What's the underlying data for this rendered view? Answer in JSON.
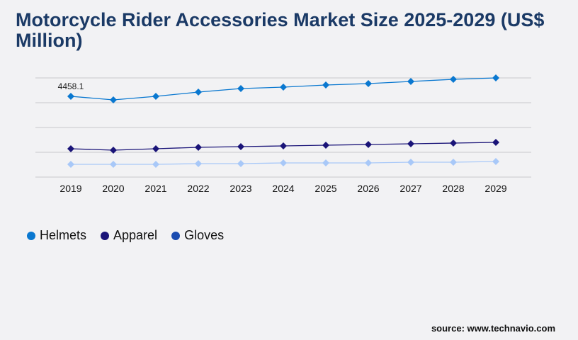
{
  "title": "Motorcycle Rider Accessories Market Size 2025-2029 (US$ Million)",
  "source": "source: www.technavio.com",
  "chart_data": {
    "type": "line",
    "title": "Motorcycle Rider Accessories Market Size 2025-2029 (US$ Million)",
    "categories": [
      "2019",
      "2020",
      "2021",
      "2022",
      "2023",
      "2024",
      "2025",
      "2026",
      "2027",
      "2028",
      "2029"
    ],
    "ylim": [
      0,
      5475
    ],
    "grid": true,
    "legend": "bottom-left",
    "series": [
      {
        "name": "Helmets",
        "color": "#0a78d0",
        "values": [
          4458.1,
          4263,
          4458,
          4693,
          4889,
          4967,
          5084,
          5162,
          5280,
          5397,
          5475
        ]
      },
      {
        "name": "Apparel",
        "color": "#1a1478",
        "values": [
          1564,
          1486,
          1564,
          1643,
          1682,
          1721,
          1760,
          1799,
          1838,
          1877,
          1916
        ]
      },
      {
        "name": "Gloves",
        "color": "#a8c8f8",
        "legend_color": "#1a4cb0",
        "values": [
          704,
          704,
          704,
          743,
          743,
          782,
          782,
          782,
          821,
          821,
          860
        ]
      }
    ],
    "data_labels": [
      {
        "series": "Helmets",
        "category": "2019",
        "text": "4458.1"
      }
    ]
  }
}
